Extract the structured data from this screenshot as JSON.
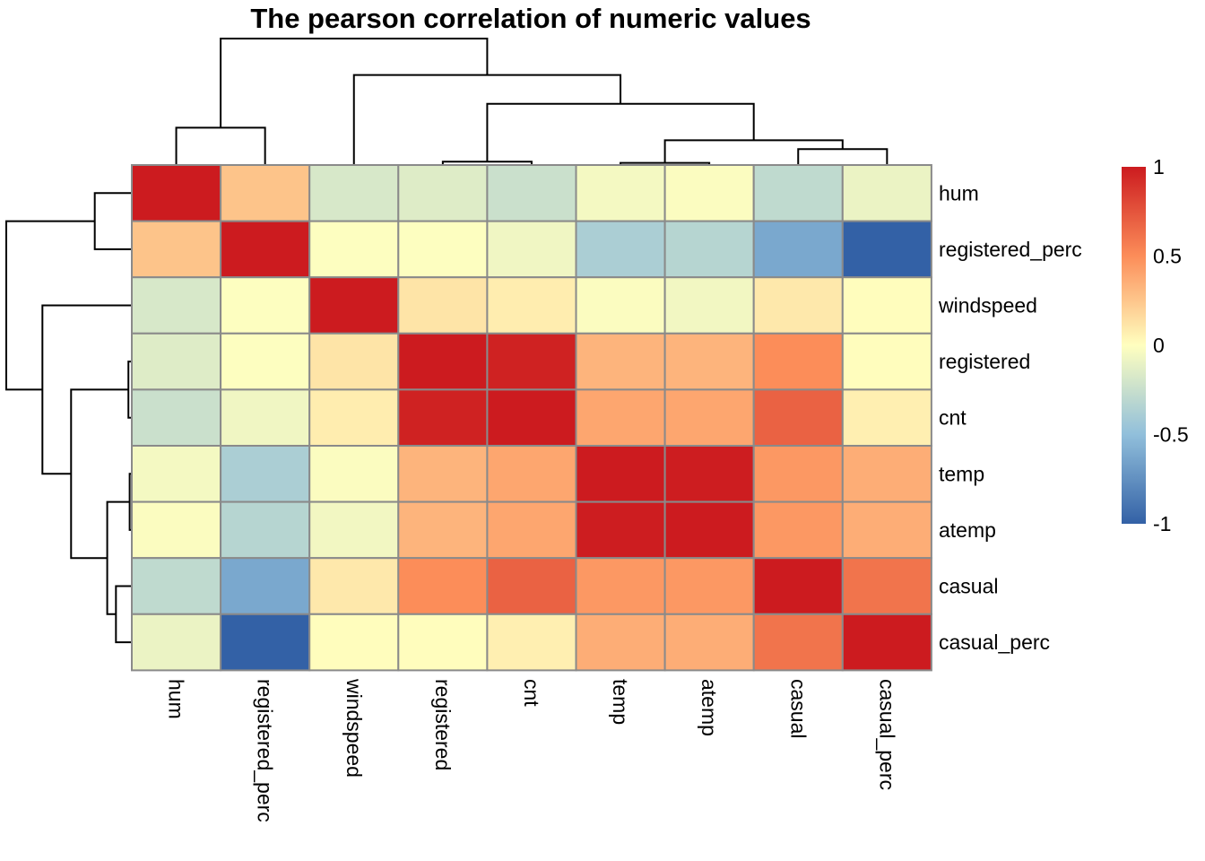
{
  "chart_data": {
    "type": "heatmap",
    "title": "The pearson correlation of numeric values",
    "rows": [
      "hum",
      "registered_perc",
      "windspeed",
      "registered",
      "cnt",
      "temp",
      "atemp",
      "casual",
      "casual_perc"
    ],
    "columns": [
      "hum",
      "registered_perc",
      "windspeed",
      "registered",
      "cnt",
      "temp",
      "atemp",
      "casual",
      "casual_perc"
    ],
    "values": [
      [
        1.0,
        0.26,
        -0.18,
        -0.15,
        -0.24,
        -0.05,
        -0.02,
        -0.29,
        -0.09
      ],
      [
        0.26,
        1.0,
        -0.01,
        -0.01,
        -0.07,
        -0.38,
        -0.33,
        -0.62,
        -1.0
      ],
      [
        -0.18,
        -0.01,
        1.0,
        0.12,
        0.08,
        -0.02,
        -0.06,
        0.1,
        0.01
      ],
      [
        -0.15,
        -0.01,
        0.12,
        1.0,
        0.97,
        0.33,
        0.33,
        0.5,
        0.01
      ],
      [
        -0.24,
        -0.07,
        0.08,
        0.97,
        1.0,
        0.39,
        0.39,
        0.69,
        0.07
      ],
      [
        -0.05,
        -0.38,
        -0.02,
        0.33,
        0.39,
        1.0,
        0.99,
        0.45,
        0.36
      ],
      [
        -0.02,
        -0.33,
        -0.06,
        0.33,
        0.39,
        0.99,
        1.0,
        0.45,
        0.36
      ],
      [
        -0.29,
        -0.62,
        0.1,
        0.5,
        0.69,
        0.45,
        0.45,
        1.0,
        0.61
      ],
      [
        -0.09,
        -1.0,
        0.01,
        0.01,
        0.07,
        0.36,
        0.36,
        0.61,
        1.0
      ]
    ],
    "color_scale": {
      "stops": [
        {
          "value": -1,
          "color": "#3361a6"
        },
        {
          "value": -0.5,
          "color": "#91bfdb"
        },
        {
          "value": 0,
          "color": "#ffffbf"
        },
        {
          "value": 0.5,
          "color": "#fc8d59"
        },
        {
          "value": 1,
          "color": "#cc1b1f"
        }
      ],
      "ticks": [
        "1",
        "0.5",
        "0",
        "-0.5",
        "-1"
      ]
    },
    "cell_border_color": "#8a8a8a",
    "dendrogram": "both"
  }
}
